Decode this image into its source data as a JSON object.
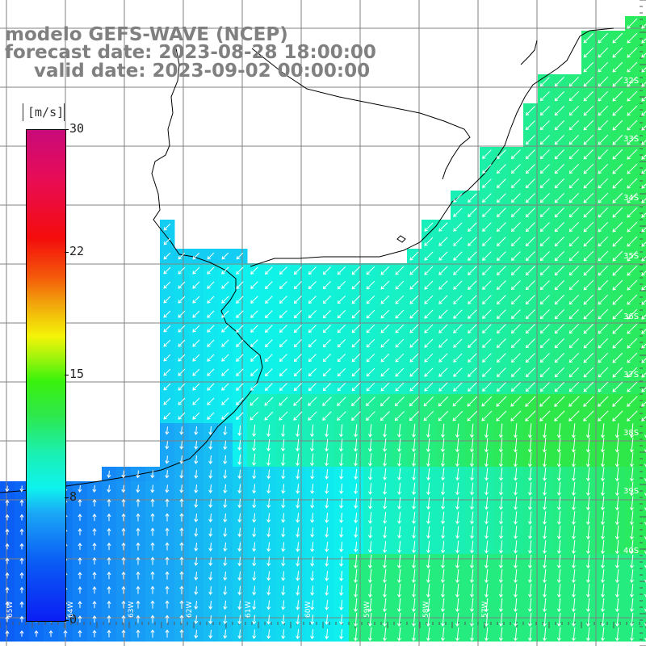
{
  "title": {
    "line1": "modelo GEFS-WAVE (NCEP)",
    "line2": "forecast date: 2023-08-28 18:00:00",
    "line3": "valid date: 2023-09-02 00:00:00"
  },
  "colorbar": {
    "unit": "[m/s]",
    "ticks": [
      "30",
      "22",
      "15",
      "8",
      "0"
    ],
    "tick_values": [
      30,
      22,
      15,
      8,
      0
    ],
    "min": 0,
    "max": 30,
    "colors": [
      "#0b1ef4",
      "#0a5cf5",
      "#1aa7f6",
      "#0ef2ee",
      "#1af0b4",
      "#2ee84a",
      "#3af20c",
      "#f4f408",
      "#f45a0a",
      "#f40c0c",
      "#c80a7a"
    ]
  },
  "map": {
    "lat_labels": [
      "32S",
      "33S",
      "34S",
      "35S",
      "36S",
      "37S",
      "38S",
      "39S",
      "40S"
    ],
    "lon_labels": [
      "65W",
      "64W",
      "63W",
      "62W",
      "61W",
      "60W",
      "59W",
      "58W",
      "57W"
    ],
    "land_color": "#ffffff",
    "grid_color": "#808080",
    "arrow_color": "#ffffff"
  }
}
